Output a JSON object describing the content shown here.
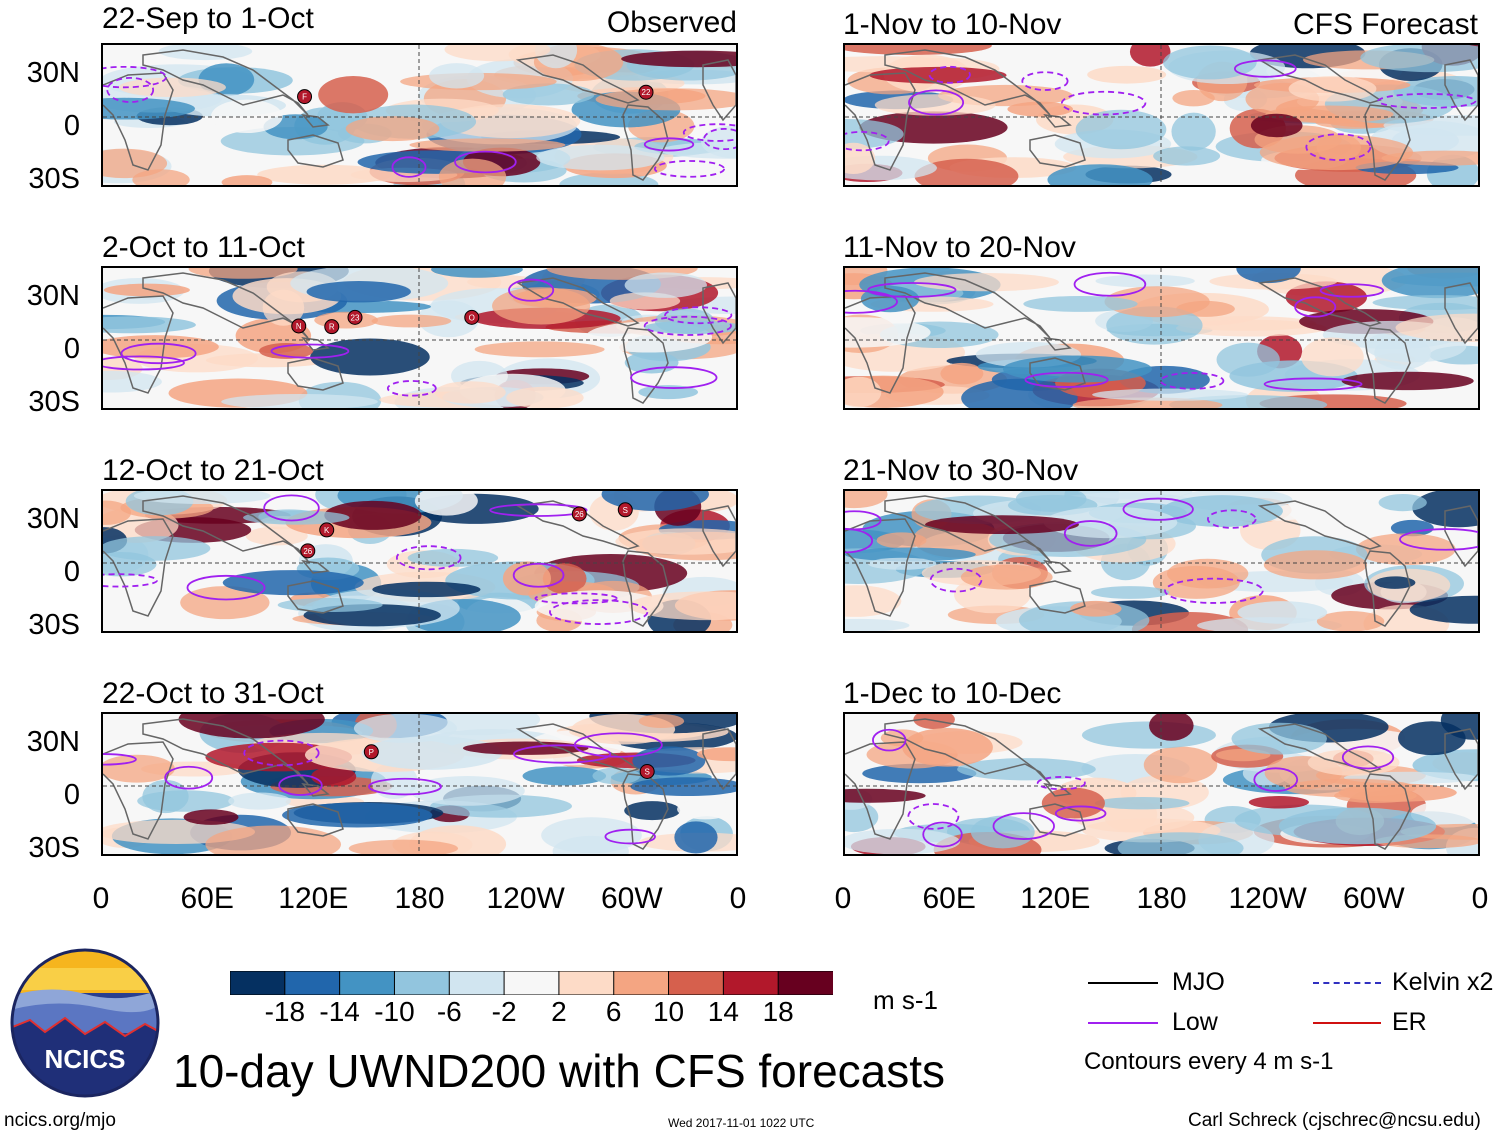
{
  "figure": {
    "title": "10-day UWND200 with CFS forecasts",
    "url": "ncics.org/mjo",
    "timestamp": "Wed 2017-11-01 1022 UTC",
    "credit": "Carl Schreck (cjschrec@ncsu.edu)",
    "logo_text": "NCICS"
  },
  "chart_data": {
    "type": "heatmap",
    "variable": "200-hPa zonal wind anomaly (10-day mean)",
    "units": "m s-1",
    "contour_note": "Contours every 4 m s-1",
    "lat_ticks": [
      "30N",
      "0",
      "30S"
    ],
    "lon_ticks": [
      "0",
      "60E",
      "120E",
      "180",
      "120W",
      "60W",
      "0"
    ],
    "colorbar": {
      "ticks": [
        "-18",
        "-14",
        "-10",
        "-6",
        "-2",
        "2",
        "6",
        "10",
        "14",
        "18"
      ],
      "colors": [
        "#053061",
        "#2166ac",
        "#4393c3",
        "#92c5de",
        "#d1e5f0",
        "#f7f7f7",
        "#fddbc7",
        "#f4a582",
        "#d6604d",
        "#b2182b",
        "#67001f"
      ]
    },
    "columns": [
      {
        "label": "Observed",
        "periods": [
          "22-Sep to 1-Oct",
          "2-Oct to 11-Oct",
          "12-Oct to 21-Oct",
          "22-Oct to 31-Oct"
        ]
      },
      {
        "label": "CFS Forecast",
        "periods": [
          "1-Nov to 10-Nov",
          "11-Nov to 20-Nov",
          "21-Nov to 30-Nov",
          "1-Dec to 10-Dec"
        ]
      }
    ],
    "storm_markers": [
      {
        "period": "22-Sep to 1-Oct",
        "labels": [
          "22",
          "F"
        ]
      },
      {
        "period": "2-Oct to 11-Oct",
        "labels": [
          "23",
          "R",
          "N",
          "O"
        ]
      },
      {
        "period": "12-Oct to 21-Oct",
        "labels": [
          "K",
          "26",
          "26",
          "S"
        ]
      },
      {
        "period": "22-Oct to 31-Oct",
        "labels": [
          "P",
          "S"
        ]
      }
    ],
    "legend": [
      {
        "name": "MJO",
        "color": "#000000"
      },
      {
        "name": "Kelvin x2",
        "color": "#3030c0"
      },
      {
        "name": "Low",
        "color": "#a020f0"
      },
      {
        "name": "ER",
        "color": "#d01010"
      }
    ]
  }
}
